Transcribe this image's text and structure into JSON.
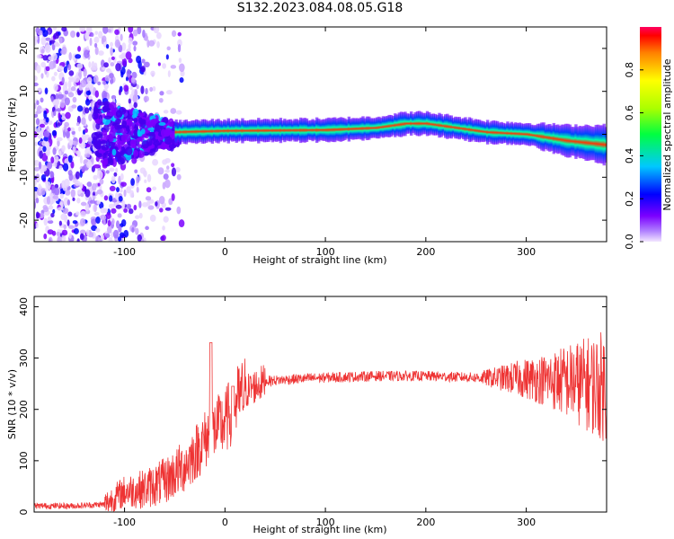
{
  "title": "S132.2023.084.08.05.G18",
  "chart_data": [
    {
      "type": "heatmap",
      "xlabel": "Height of straight line (km)",
      "ylabel": "Frequency (Hz)",
      "xlim": [
        -190,
        380
      ],
      "ylim": [
        -25,
        25
      ],
      "xticks": [
        -100,
        0,
        100,
        200,
        300
      ],
      "yticks": [
        -20,
        -10,
        0,
        10,
        20
      ],
      "colorbar": {
        "label": "Normalized spectral amplitude",
        "range": [
          0,
          1
        ],
        "ticks": [
          "0.0",
          "0.2",
          "0.4",
          "0.6",
          "0.8"
        ]
      },
      "ridge": {
        "x": [
          -50,
          0,
          50,
          100,
          150,
          180,
          200,
          230,
          260,
          300,
          340,
          380
        ],
        "y": [
          0.5,
          0.8,
          0.9,
          1.0,
          1.5,
          2.5,
          2.5,
          1.5,
          0.5,
          0.0,
          -1.5,
          -2.5
        ]
      }
    },
    {
      "type": "line",
      "xlabel": "Height of straight line (km)",
      "ylabel": "SNR (10 * v/v)",
      "xlim": [
        -190,
        380
      ],
      "ylim": [
        0,
        420
      ],
      "xticks": [
        -100,
        0,
        100,
        200,
        300
      ],
      "yticks": [
        0,
        100,
        200,
        300,
        400
      ],
      "color": "#ee3333",
      "series": [
        {
          "x": [
            -190,
            -150,
            -120,
            -100,
            -80,
            -60,
            -40,
            -20,
            -10,
            0,
            10,
            20,
            40,
            60,
            100,
            150,
            200,
            250,
            300,
            340,
            380
          ],
          "y": [
            12,
            12,
            15,
            40,
            45,
            60,
            90,
            140,
            160,
            175,
            210,
            235,
            255,
            258,
            262,
            265,
            265,
            262,
            260,
            255,
            245
          ]
        }
      ]
    }
  ]
}
